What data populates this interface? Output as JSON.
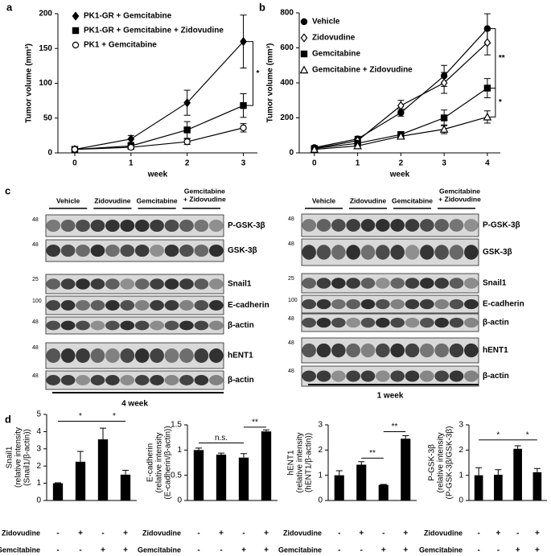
{
  "panel_labels": [
    "a",
    "b",
    "c",
    "d"
  ],
  "chart_data": [
    {
      "type": "line",
      "ylabel": "Tumor volume (mm³)",
      "xlabel": "week",
      "x": [
        0,
        1,
        2,
        3
      ],
      "xlim": [
        -0.3,
        3.25
      ],
      "xticks": [
        0,
        1,
        2,
        3
      ],
      "ylim": [
        0,
        200
      ],
      "yticks": [
        0,
        50,
        100,
        150,
        200
      ],
      "series": [
        {
          "name": "PK1-GR + Gemcitabine",
          "color": "#000000",
          "marker": "diamond",
          "filled": true,
          "values": [
            5,
            20,
            72,
            160
          ],
          "errors": [
            2,
            5,
            18,
            38
          ]
        },
        {
          "name": "PK1-GR + Gemcitabine + Zidovudine",
          "color": "#000000",
          "marker": "square",
          "filled": true,
          "values": [
            5,
            10,
            33,
            68
          ],
          "errors": [
            2,
            4,
            12,
            17
          ]
        },
        {
          "name": "PK1 + Gemcitabine",
          "color": "#000000",
          "marker": "circle",
          "filled": false,
          "values": [
            5,
            8,
            16,
            36
          ],
          "errors": [
            2,
            3,
            4,
            6
          ]
        }
      ],
      "annotations": [
        "*"
      ]
    },
    {
      "type": "line",
      "ylabel": "Tumor volume (mm³)",
      "xlabel": "week",
      "x": [
        0,
        1,
        2,
        3,
        4
      ],
      "xlim": [
        -0.35,
        4.3
      ],
      "xticks": [
        0,
        1,
        2,
        3,
        4
      ],
      "ylim": [
        0,
        800
      ],
      "yticks": [
        0,
        200,
        400,
        600,
        800
      ],
      "series": [
        {
          "name": "Vehicle",
          "color": "#000000",
          "marker": "circle",
          "filled": true,
          "values": [
            30,
            80,
            230,
            440,
            710
          ],
          "errors": [
            5,
            15,
            20,
            60,
            85
          ]
        },
        {
          "name": "Zidovudine",
          "color": "#000000",
          "marker": "diamond",
          "filled": false,
          "values": [
            25,
            70,
            270,
            400,
            630
          ],
          "errors": [
            5,
            15,
            30,
            60,
            70
          ]
        },
        {
          "name": "Gemcitabine",
          "color": "#000000",
          "marker": "square",
          "filled": true,
          "values": [
            25,
            55,
            105,
            200,
            370
          ],
          "errors": [
            5,
            10,
            10,
            45,
            55
          ]
        },
        {
          "name": "Gemcitabine + Zidovudine",
          "color": "#000000",
          "marker": "triangle",
          "filled": false,
          "values": [
            20,
            40,
            95,
            135,
            205
          ],
          "errors": [
            5,
            10,
            10,
            25,
            35
          ]
        }
      ],
      "annotations": [
        "**",
        "*"
      ]
    },
    {
      "type": "bar",
      "ylabel": [
        "Snail1",
        "(relative intensity",
        "(Snail1/β-actin))"
      ],
      "categories": [
        null,
        null,
        null,
        null
      ],
      "color": "#000000",
      "values": [
        1,
        2.25,
        3.55,
        1.5
      ],
      "errors": [
        0.03,
        0.6,
        0.65,
        0.25
      ],
      "ylim": [
        0,
        5
      ],
      "yticks": [
        0,
        1,
        2,
        3,
        4,
        5
      ],
      "treatment_rows": [
        {
          "name": "Zidovudine",
          "signs": [
            "-",
            "+",
            "-",
            "+"
          ]
        },
        {
          "name": "Gemcitabine",
          "signs": [
            "-",
            "-",
            "+",
            "+"
          ]
        }
      ],
      "annotations": [
        "*",
        "*"
      ]
    },
    {
      "type": "bar",
      "ylabel": [
        "E-cadherin",
        "(relative intensity",
        "(E-cadherin/β-actin))"
      ],
      "categories": [
        null,
        null,
        null,
        null
      ],
      "color": "#000000",
      "values": [
        1.0,
        0.91,
        0.85,
        1.37
      ],
      "errors": [
        0.04,
        0.03,
        0.08,
        0.03
      ],
      "ylim": [
        0,
        1.5
      ],
      "yticks": [
        0,
        0.5,
        1,
        1.5
      ],
      "treatment_rows": [
        {
          "name": "Zidovudine",
          "signs": [
            "-",
            "+",
            "-",
            "+"
          ]
        },
        {
          "name": "Gemcitabine",
          "signs": [
            "-",
            "-",
            "+",
            "+"
          ]
        }
      ],
      "annotations": [
        "n.s.",
        "**"
      ]
    },
    {
      "type": "bar",
      "ylabel": [
        "hENT1",
        "(relative intensity",
        "(hENT1/β-actin))"
      ],
      "categories": [
        null,
        null,
        null,
        null
      ],
      "color": "#000000",
      "values": [
        1.0,
        1.42,
        0.62,
        2.45
      ],
      "errors": [
        0.18,
        0.12,
        0.02,
        0.12
      ],
      "ylim": [
        0,
        3
      ],
      "yticks": [
        0,
        1,
        2,
        3
      ],
      "treatment_rows": [
        {
          "name": "Zidovudine",
          "signs": [
            "-",
            "+",
            "-",
            "+"
          ]
        },
        {
          "name": "Gemcitabine",
          "signs": [
            "-",
            "-",
            "+",
            "+"
          ]
        }
      ],
      "annotations": [
        "**",
        "**"
      ]
    },
    {
      "type": "bar",
      "ylabel": [
        "P-GSK-3β",
        "(relative intensity",
        "(P-GSK-3β/GSK-3β)"
      ],
      "categories": [
        null,
        null,
        null,
        null
      ],
      "color": "#000000",
      "values": [
        1.0,
        1.02,
        2.05,
        1.12
      ],
      "errors": [
        0.3,
        0.2,
        0.12,
        0.15
      ],
      "ylim": [
        0,
        3
      ],
      "yticks": [
        0,
        1,
        2,
        3
      ],
      "treatment_rows": [
        {
          "name": "Zidovudine",
          "signs": [
            "-",
            "+",
            "-",
            "+"
          ]
        },
        {
          "name": "Gemcitabine",
          "signs": [
            "-",
            "-",
            "+",
            "+"
          ]
        }
      ],
      "annotations": [
        "*",
        "*"
      ]
    }
  ],
  "blots": [
    {
      "groups": [
        "Vehicle",
        "Zidovudine",
        "Gemcitabine",
        [
          "Gemcitabine",
          "+ Zidovudine"
        ]
      ],
      "rows": [
        {
          "marker": 48,
          "label": "P-GSK-3β"
        },
        {
          "marker": 48,
          "label": "GSK-3β"
        },
        {
          "marker": 25,
          "label": "Snail1"
        },
        {
          "marker": 100,
          "label": "E-cadherin"
        },
        {
          "marker": 48,
          "label": "β-actin"
        },
        {
          "marker": 48,
          "label": "hENT1"
        },
        {
          "marker": 48,
          "label": "β-actin"
        }
      ],
      "footer": "4 week"
    },
    {
      "groups": [
        "Vehicle",
        "Zidovudine",
        "Gemcitabine",
        [
          "Gemcitabine",
          "+ Zidovudine"
        ]
      ],
      "rows": [
        {
          "marker": 48,
          "label": "P-GSK-3β"
        },
        {
          "marker": 48,
          "label": "GSK-3β"
        },
        {
          "marker": 25,
          "label": "Snail1"
        },
        {
          "marker": 100,
          "label": "E-cadherin"
        },
        {
          "marker": 48,
          "label": "β-actin"
        },
        {
          "marker": 48,
          "label": "hENT1"
        },
        {
          "marker": 48,
          "label": "β-actin"
        }
      ],
      "footer": "1 week"
    }
  ]
}
